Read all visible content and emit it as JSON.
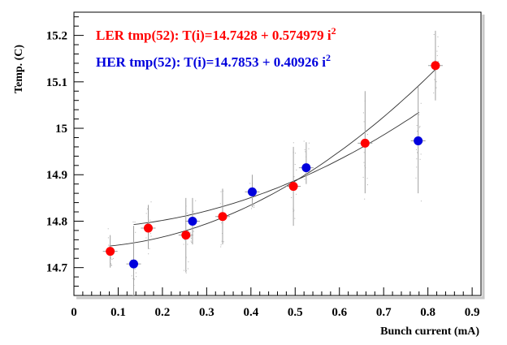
{
  "chart_data": {
    "type": "scatter",
    "xlabel": "Bunch current (mA)",
    "ylabel": "Temp. (C)",
    "xlim": [
      0,
      0.92
    ],
    "ylim": [
      14.64,
      15.25
    ],
    "xticks": [
      0,
      0.1,
      0.2,
      0.3,
      0.4,
      0.5,
      0.6,
      0.7,
      0.8,
      0.9
    ],
    "xtick_labels": [
      "0",
      "0.1",
      "0.2",
      "0.3",
      "0.4",
      "0.5",
      "0.6",
      "0.7",
      "0.8",
      "0.9"
    ],
    "yticks": [
      14.7,
      14.8,
      14.9,
      15.0,
      15.1,
      15.2
    ],
    "ytick_labels": [
      "14.7",
      "14.8",
      "14.9",
      "15",
      "15.1",
      "15.2"
    ],
    "grid": false,
    "series": [
      {
        "name": "LER tmp(52): T(i)=14.7428 + 0.574979 i",
        "name_sup": "2",
        "color": "#ff0000",
        "fit": {
          "a": 14.7428,
          "b": 0.574979,
          "x_range": [
            0.08,
            0.82
          ]
        },
        "points": [
          {
            "x": 0.082,
            "y": 14.735,
            "ylo": 14.7,
            "yhi": 14.77
          },
          {
            "x": 0.168,
            "y": 14.785,
            "ylo": 14.74,
            "yhi": 14.835
          },
          {
            "x": 0.253,
            "y": 14.77,
            "ylo": 14.69,
            "yhi": 14.85
          },
          {
            "x": 0.336,
            "y": 14.81,
            "ylo": 14.75,
            "yhi": 14.87
          },
          {
            "x": 0.496,
            "y": 14.875,
            "ylo": 14.79,
            "yhi": 14.96
          },
          {
            "x": 0.658,
            "y": 14.968,
            "ylo": 14.86,
            "yhi": 15.08
          },
          {
            "x": 0.817,
            "y": 15.135,
            "ylo": 15.06,
            "yhi": 15.21
          }
        ]
      },
      {
        "name": "HER tmp(52): T(i)=14.7853 + 0.40926 i",
        "name_sup": "2",
        "color": "#0000dd",
        "fit": {
          "a": 14.7853,
          "b": 0.40926,
          "x_range": [
            0.135,
            0.78
          ]
        },
        "points": [
          {
            "x": 0.135,
            "y": 14.708,
            "ylo": 14.64,
            "yhi": 14.79
          },
          {
            "x": 0.268,
            "y": 14.8,
            "ylo": 14.75,
            "yhi": 14.85
          },
          {
            "x": 0.403,
            "y": 14.863,
            "ylo": 14.83,
            "yhi": 14.9
          },
          {
            "x": 0.525,
            "y": 14.915,
            "ylo": 14.88,
            "yhi": 14.97
          },
          {
            "x": 0.778,
            "y": 14.973,
            "ylo": 14.86,
            "yhi": 15.09
          }
        ]
      }
    ]
  }
}
